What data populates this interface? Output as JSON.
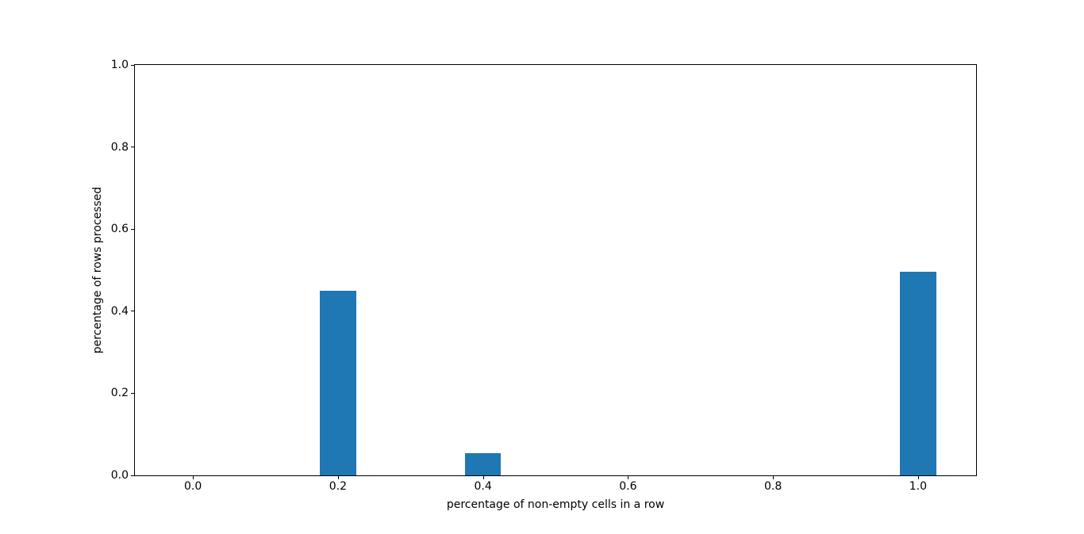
{
  "figure": {
    "background_color": "#ffffff"
  },
  "chart_data": {
    "type": "bar",
    "title": "",
    "xlabel": "percentage of non-empty cells in a row",
    "ylabel": "percentage of rows processed",
    "x": [
      0.2,
      0.4,
      1.0
    ],
    "values": [
      0.45,
      0.055,
      0.497
    ],
    "bar_width": 0.05,
    "bar_color": "#1f77b4",
    "xlim": [
      -0.08,
      1.08
    ],
    "ylim": [
      0.0,
      1.0
    ],
    "xtick_labels": [
      "0.0",
      "0.2",
      "0.4",
      "0.6",
      "0.8",
      "1.0"
    ],
    "ytick_labels": [
      "0.0",
      "0.2",
      "0.4",
      "0.6",
      "0.8",
      "1.0"
    ],
    "grid": false,
    "legend": null,
    "axis_color": "#000000",
    "text_color": "#000000"
  }
}
